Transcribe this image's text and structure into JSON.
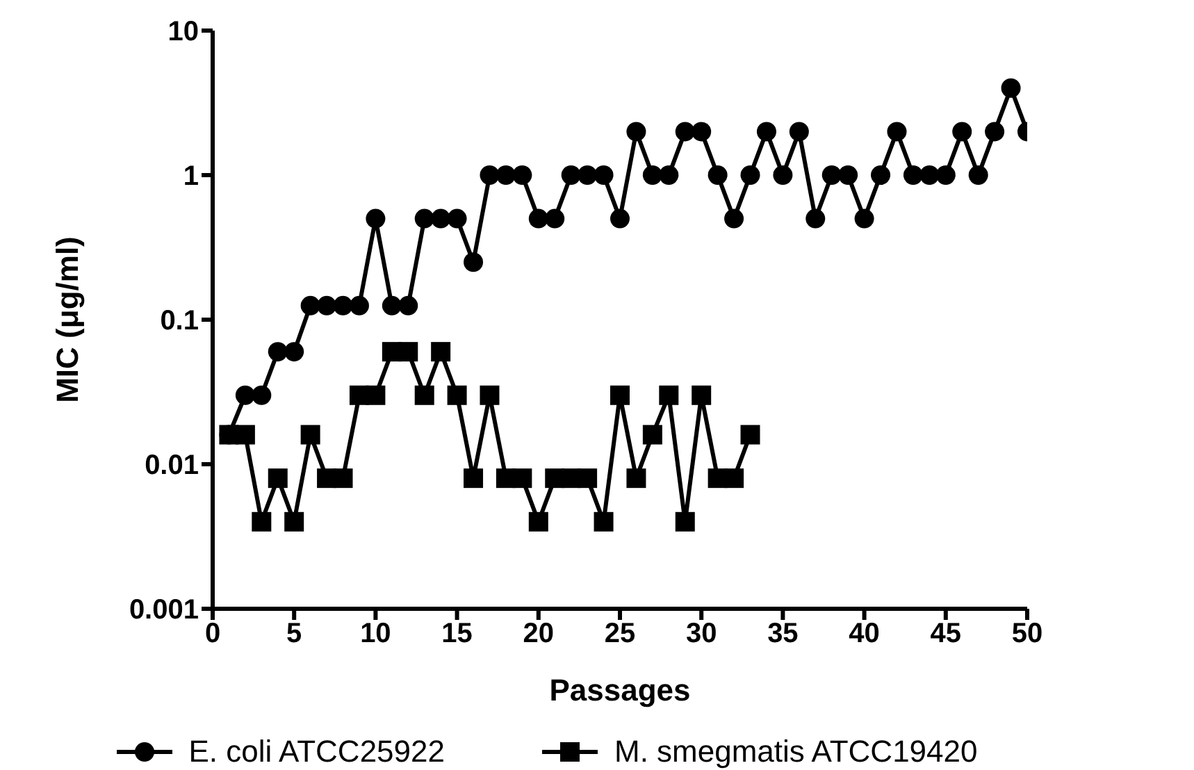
{
  "chart_data": {
    "type": "line",
    "xlabel": "Passages",
    "ylabel": "MIC (μg/ml)",
    "log": "y",
    "xlim": [
      0,
      50
    ],
    "xticks": [
      0,
      5,
      10,
      15,
      20,
      25,
      30,
      35,
      40,
      45,
      50
    ],
    "ylim": [
      0.001,
      10
    ],
    "yticks": [
      0.001,
      0.01,
      0.1,
      1,
      10
    ],
    "grid": false,
    "legend": "bottom",
    "x": [
      1,
      2,
      3,
      4,
      5,
      6,
      7,
      8,
      9,
      10,
      11,
      12,
      13,
      14,
      15,
      16,
      17,
      18,
      19,
      20,
      21,
      22,
      23,
      24,
      25,
      26,
      27,
      28,
      29,
      30,
      31,
      32,
      33,
      34,
      35,
      36,
      37,
      38,
      39,
      40,
      41,
      42,
      43,
      44,
      45,
      46,
      47,
      48,
      49,
      50
    ],
    "series": [
      {
        "name": "E. coli ATCC25922",
        "color": "#000000",
        "marker": "circle",
        "values": [
          0.016,
          0.03,
          0.03,
          0.06,
          0.06,
          0.125,
          0.125,
          0.125,
          0.125,
          0.5,
          0.125,
          0.125,
          0.5,
          0.5,
          0.5,
          0.25,
          1,
          1,
          1,
          0.5,
          0.5,
          1,
          1,
          1,
          0.5,
          2,
          1,
          1,
          2,
          2,
          1,
          0.5,
          1,
          2,
          1,
          2,
          0.5,
          1,
          1,
          0.5,
          1,
          2,
          1,
          1,
          1,
          2,
          1,
          2,
          4,
          2
        ]
      },
      {
        "name": "M. smegmatis ATCC19420",
        "color": "#000000",
        "marker": "square",
        "values": [
          0.016,
          0.016,
          0.004,
          0.008,
          0.004,
          0.016,
          0.008,
          0.008,
          0.03,
          0.03,
          0.06,
          0.06,
          0.03,
          0.06,
          0.03,
          0.008,
          0.03,
          0.008,
          0.008,
          0.004,
          0.008,
          0.008,
          0.008,
          0.004,
          0.03,
          0.008,
          0.016,
          0.03,
          0.004,
          0.03,
          0.008,
          0.008,
          0.016,
          null,
          null,
          null,
          null,
          null,
          null,
          null,
          null,
          null,
          null,
          null,
          null,
          null,
          null,
          null,
          null,
          null
        ]
      }
    ]
  }
}
